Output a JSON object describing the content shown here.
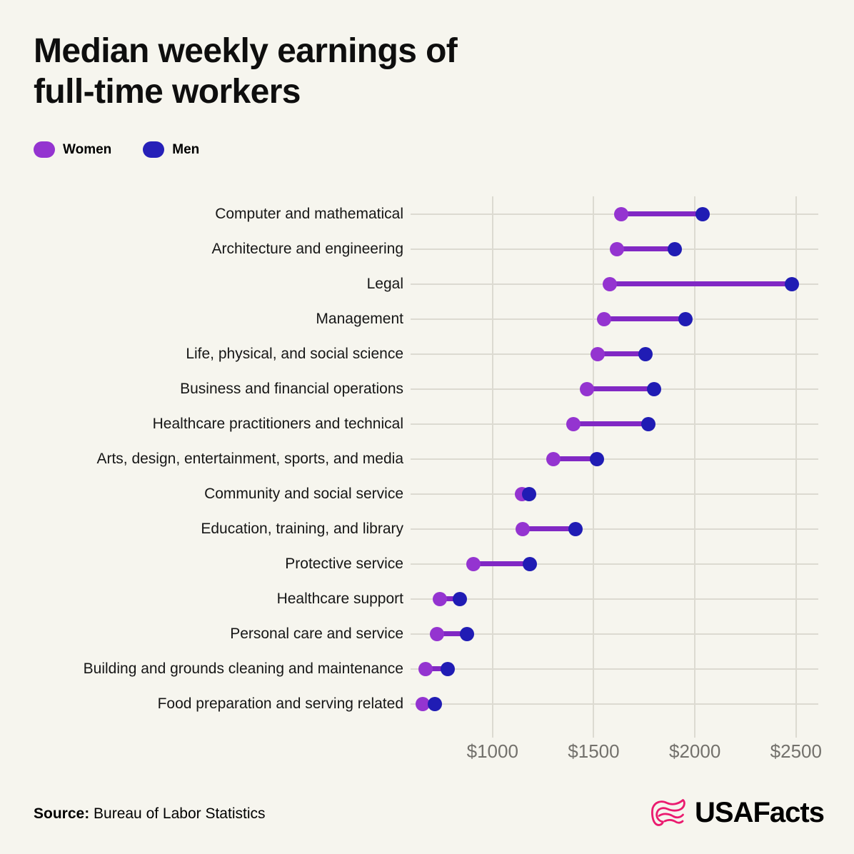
{
  "title_lines": [
    "Median weekly earnings of",
    "full-time workers"
  ],
  "legend": [
    {
      "label": "Women",
      "color": "#9434d0"
    },
    {
      "label": "Men",
      "color": "#2620b8"
    }
  ],
  "footer": {
    "source_prefix": "Source:",
    "source_text": " Bureau of Labor Statistics",
    "logo_text": "USAFacts",
    "logo_color": "#ea1a6f"
  },
  "colors": {
    "background": "#f6f5ee",
    "gridline": "#dcdad1",
    "tick_label": "#73716c",
    "category_label": "#161616",
    "title": "#0e0e0e",
    "women": "#9434d0",
    "men": "#201cb4",
    "connector": "#8128c4"
  },
  "chart_data": {
    "type": "dumbbell",
    "title": "Median weekly earnings of full-time workers",
    "unit": "US dollars per week",
    "x_domain": [
      595,
      2610
    ],
    "x_ticks": [
      1000,
      1500,
      2000,
      2500
    ],
    "x_tick_labels": [
      "$1000",
      "$1500",
      "$2000",
      "$2500"
    ],
    "grid": "vertical ticks + one horizontal line per category",
    "legend_position": "top-left",
    "series_names": [
      "Women",
      "Men"
    ],
    "categories": [
      "Computer and mathematical",
      "Architecture and engineering",
      "Legal",
      "Management",
      "Life, physical, and social science",
      "Business and financial operations",
      "Healthcare practitioners and technical",
      "Arts, design, entertainment, sports, and media",
      "Community and social service",
      "Education, training, and library",
      "Protective service",
      "Healthcare support",
      "Personal care and service",
      "Building and grounds cleaning and maintenance",
      "Food preparation and serving related"
    ],
    "series": [
      {
        "name": "Women",
        "values": [
          1635,
          1615,
          1580,
          1550,
          1520,
          1465,
          1400,
          1300,
          1145,
          1150,
          905,
          740,
          725,
          670,
          655
        ]
      },
      {
        "name": "Men",
        "values": [
          2040,
          1900,
          2480,
          1955,
          1755,
          1800,
          1770,
          1515,
          1180,
          1410,
          1185,
          840,
          875,
          780,
          715
        ]
      }
    ],
    "source": "Bureau of Labor Statistics"
  }
}
